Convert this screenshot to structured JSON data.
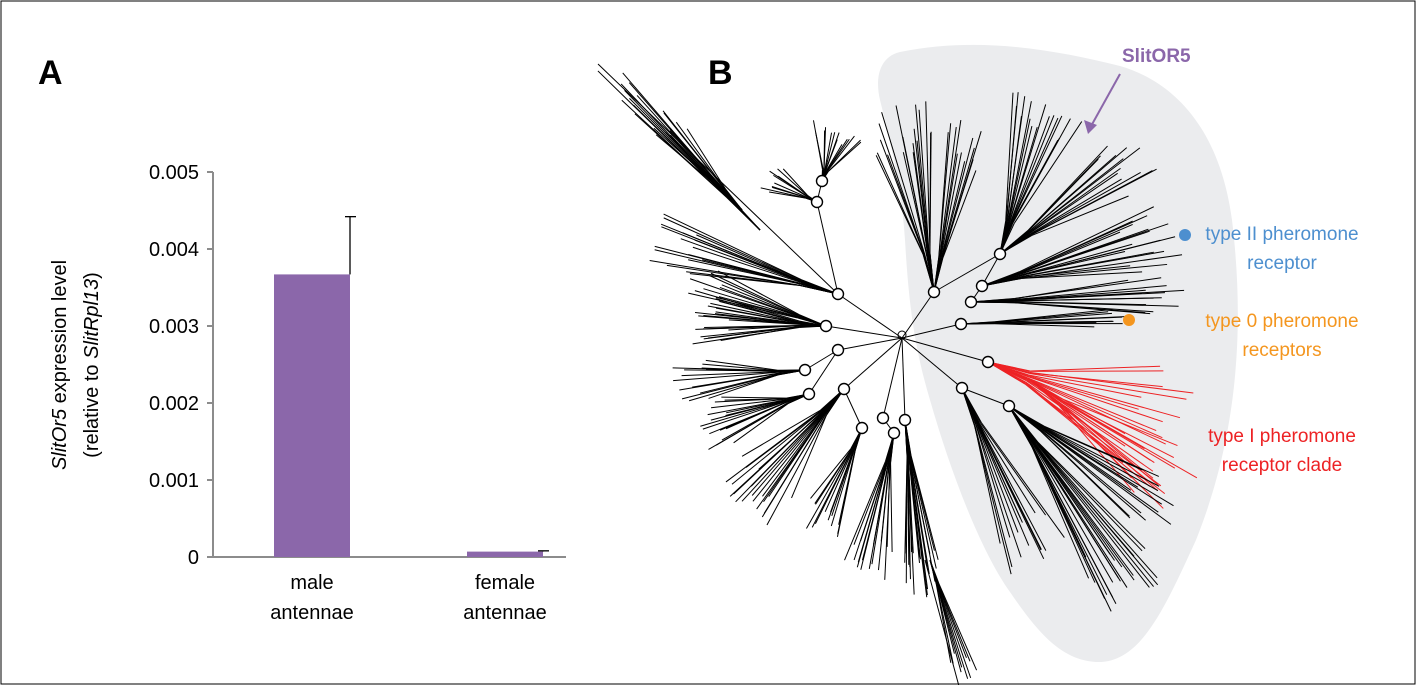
{
  "panels": {
    "a_label": "A",
    "b_label": "B"
  },
  "chart_data": [
    {
      "type": "bar",
      "ylabel": {
        "line1_italic": "SlitOr5",
        "line1_rest": " expression level",
        "line2_open": "(relative to ",
        "line2_italic": "SlitRpl13",
        "line2_close": ")"
      },
      "categories": [
        [
          "male",
          "antennae"
        ],
        [
          "female",
          "antennae"
        ]
      ],
      "values": [
        0.00367,
        7e-05
      ],
      "errors": [
        0.00075,
        1e-05
      ],
      "ylim": [
        0,
        0.005
      ],
      "yticks": [
        "0",
        "0.001",
        "0.002",
        "0.003",
        "0.004",
        "0.005"
      ],
      "ytick_values": [
        0,
        0.001,
        0.002,
        0.003,
        0.004,
        0.005
      ],
      "bar_color": "#8b67aa",
      "grid": false
    },
    {
      "type": "tree",
      "callout": {
        "text": "SlitOR5",
        "color": "#8b67aa"
      },
      "highlight_region_color": "#ebecee",
      "legend": [
        {
          "lines": [
            "type II pheromone",
            "receptor"
          ],
          "color": "#4d8fcf"
        },
        {
          "lines": [
            "type 0 pheromone",
            "receptors"
          ],
          "color": "#f4961f"
        },
        {
          "lines": [
            "type I pheromone",
            "receptor clade"
          ],
          "color": "#ed2224"
        }
      ]
    }
  ]
}
